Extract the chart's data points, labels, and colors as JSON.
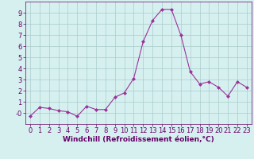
{
  "x": [
    0,
    1,
    2,
    3,
    4,
    5,
    6,
    7,
    8,
    9,
    10,
    11,
    12,
    13,
    14,
    15,
    16,
    17,
    18,
    19,
    20,
    21,
    22,
    23
  ],
  "y": [
    -0.3,
    0.5,
    0.4,
    0.2,
    0.1,
    -0.3,
    0.6,
    0.3,
    0.3,
    1.4,
    1.8,
    3.1,
    6.4,
    8.3,
    9.3,
    9.3,
    7.0,
    3.7,
    2.6,
    2.8,
    2.3,
    1.5,
    2.8,
    2.3
  ],
  "line_color": "#993399",
  "marker": "D",
  "marker_size": 2.0,
  "bg_color": "#d6f0f0",
  "grid_color": "#aacccc",
  "xlabel": "Windchill (Refroidissement éolien,°C)",
  "xlabel_color": "#660066",
  "xlabel_fontsize": 6.5,
  "tick_color": "#660066",
  "tick_fontsize": 6.0,
  "xlim": [
    -0.5,
    23.5
  ],
  "ylim": [
    -1.0,
    10.0
  ],
  "yticks": [
    0,
    1,
    2,
    3,
    4,
    5,
    6,
    7,
    8,
    9
  ],
  "ytick_labels": [
    "-0",
    "1",
    "2",
    "3",
    "4",
    "5",
    "6",
    "7",
    "8",
    "9"
  ],
  "xticks": [
    0,
    1,
    2,
    3,
    4,
    5,
    6,
    7,
    8,
    9,
    10,
    11,
    12,
    13,
    14,
    15,
    16,
    17,
    18,
    19,
    20,
    21,
    22,
    23
  ]
}
